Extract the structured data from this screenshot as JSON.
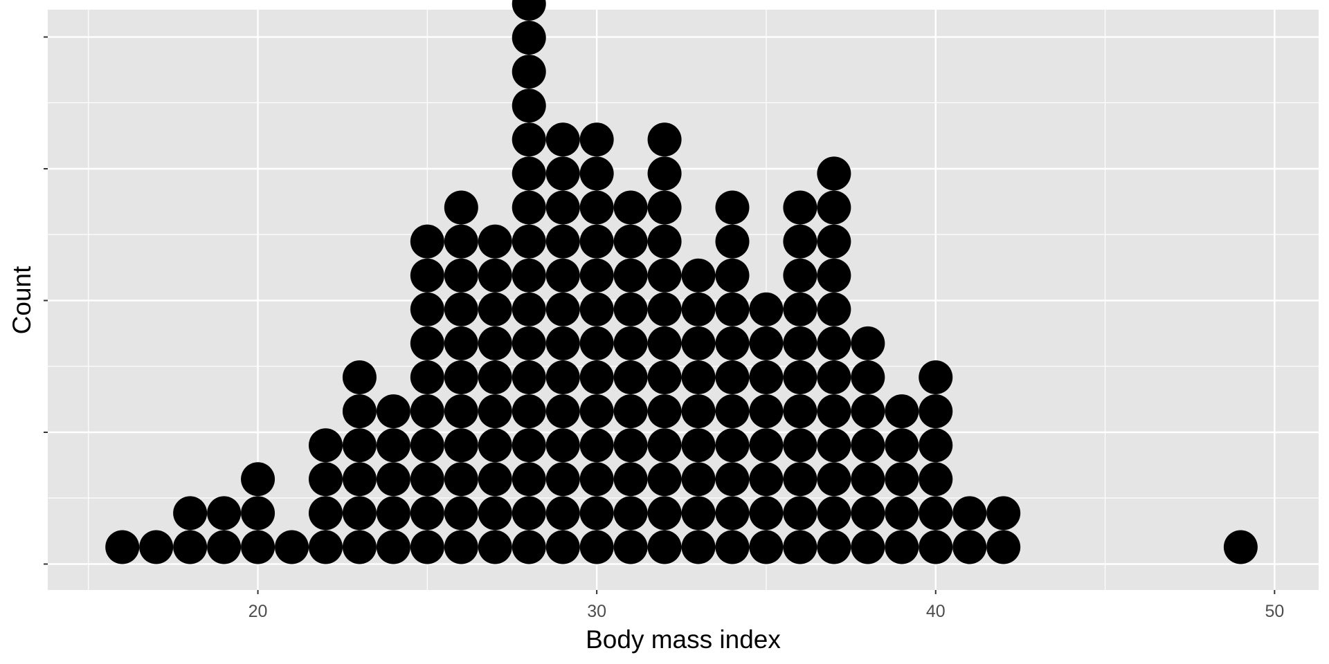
{
  "chart_data": {
    "type": "dotplot",
    "xlabel": "Body mass index",
    "ylabel": "Count",
    "xlim": [
      13.8,
      51.3
    ],
    "x_ticks": [
      20,
      30,
      40,
      50
    ],
    "x_minor_ticks": [
      15,
      25,
      35,
      45
    ],
    "y_ticks_labeled": false,
    "grid": true,
    "dot_binwidth": 1,
    "dots": [
      {
        "x": 16,
        "count": 1
      },
      {
        "x": 17,
        "count": 1
      },
      {
        "x": 18,
        "count": 2
      },
      {
        "x": 19,
        "count": 2
      },
      {
        "x": 20,
        "count": 3
      },
      {
        "x": 21,
        "count": 1
      },
      {
        "x": 22,
        "count": 4
      },
      {
        "x": 23,
        "count": 6
      },
      {
        "x": 24,
        "count": 5
      },
      {
        "x": 25,
        "count": 10
      },
      {
        "x": 26,
        "count": 11
      },
      {
        "x": 27,
        "count": 10
      },
      {
        "x": 28,
        "count": 17
      },
      {
        "x": 29,
        "count": 13
      },
      {
        "x": 30,
        "count": 13
      },
      {
        "x": 31,
        "count": 11
      },
      {
        "x": 32,
        "count": 13
      },
      {
        "x": 33,
        "count": 9
      },
      {
        "x": 34,
        "count": 11
      },
      {
        "x": 35,
        "count": 8
      },
      {
        "x": 36,
        "count": 11
      },
      {
        "x": 37,
        "count": 12
      },
      {
        "x": 38,
        "count": 7
      },
      {
        "x": 39,
        "count": 5
      },
      {
        "x": 40,
        "count": 6
      },
      {
        "x": 41,
        "count": 2
      },
      {
        "x": 42,
        "count": 2
      },
      {
        "x": 49,
        "count": 1
      }
    ],
    "colors": {
      "panel": "#e5e5e5",
      "grid": "#ffffff",
      "dot": "#000000",
      "tick_text": "#4d4d4d",
      "axis_text": "#000000"
    }
  }
}
